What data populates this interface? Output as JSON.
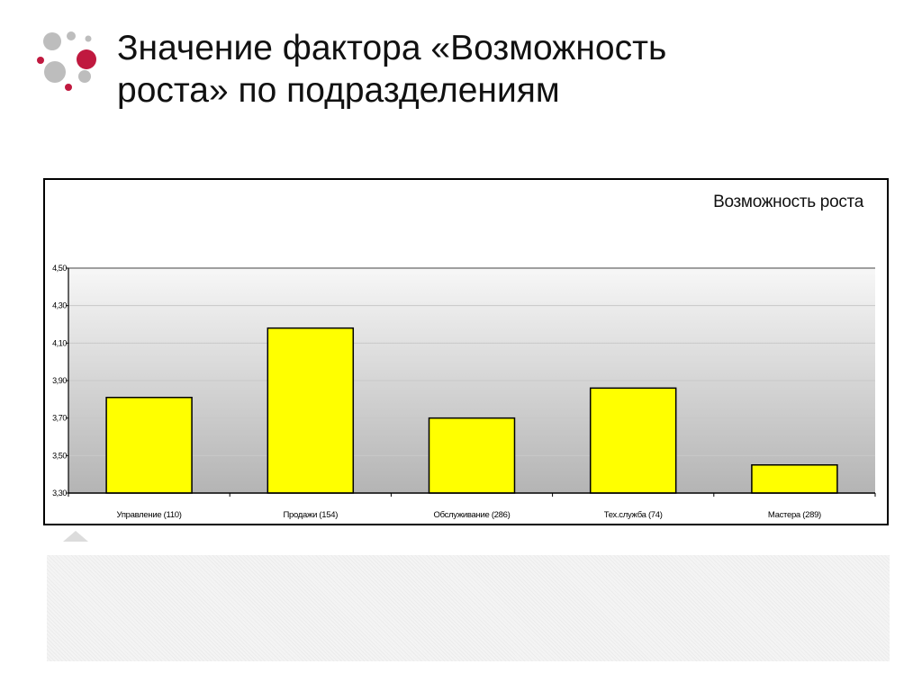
{
  "slide": {
    "title_line1": "Значение фактора «Возможность",
    "title_line2": "роста» по подразделениям"
  },
  "colors": {
    "bar_fill": "#FFFF00",
    "bar_stroke": "#000000",
    "logo_red": "#C0193F",
    "logo_gray": "#BDBDBD"
  },
  "chart_data": {
    "type": "bar",
    "title": "Возможность роста",
    "categories": [
      "Управление (110)",
      "Продажи (154)",
      "Обслуживание (286)",
      "Тех.служба (74)",
      "Мастера (289)"
    ],
    "values": [
      3.81,
      4.18,
      3.7,
      3.86,
      3.45
    ],
    "ylim": [
      3.3,
      4.5
    ],
    "yticks": [
      "3,30",
      "3,50",
      "3,70",
      "3,90",
      "4,10",
      "4,30",
      "4,50"
    ],
    "ytick_values": [
      3.3,
      3.5,
      3.7,
      3.9,
      4.1,
      4.3,
      4.5
    ],
    "grid": true,
    "legend": "none"
  }
}
